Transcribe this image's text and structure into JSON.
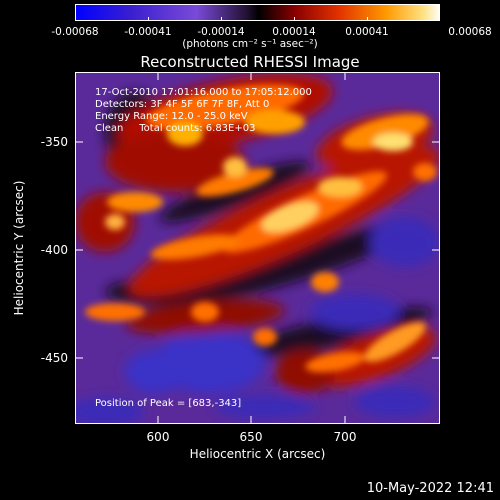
{
  "colorbar": {
    "ticks": [
      "-0.00068",
      "-0.00041",
      "-0.00014",
      "0.00014",
      "0.00041",
      "0.00068"
    ],
    "unit_label": "(photons cm⁻² s⁻¹ asec⁻²)",
    "colors": [
      "#0000ff",
      "#5a2cc8",
      "#7a4ad8",
      "#000000",
      "#8a0000",
      "#e23200",
      "#ff8a00",
      "#ffd45a",
      "#ffffff"
    ]
  },
  "title": "Reconstructed RHESSI Image",
  "info": {
    "line1": "17-Oct-2010 17:01:16.000 to 17:05:12.000",
    "line2": "Detectors: 3F 4F 5F 6F 7F 8F, Att 0",
    "line3": "Energy Range: 12.0 - 25.0 keV",
    "line4": "Clean     Total counts: 6.83E+03",
    "peak": "Position of Peak = [683,-343]"
  },
  "axes": {
    "xlabel": "Heliocentric X (arcsec)",
    "ylabel": "Heliocentric Y (arcsec)",
    "xticks": [
      "600",
      "650",
      "700"
    ],
    "yticks": [
      "-350",
      "-400",
      "-450"
    ]
  },
  "timestamp": "10-May-2022 12:41"
}
